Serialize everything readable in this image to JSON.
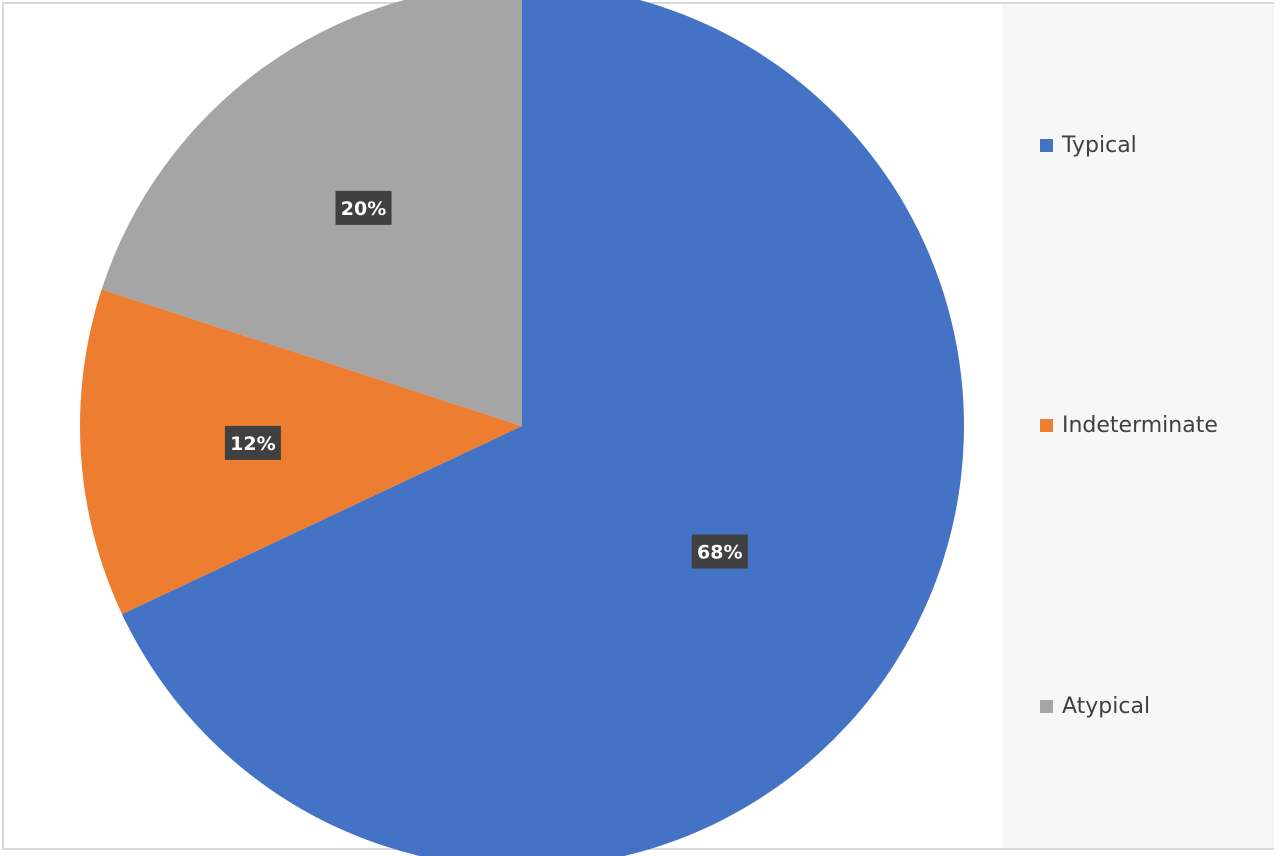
{
  "chart_data": {
    "type": "pie",
    "categories": [
      "Typical",
      "Indeterminate",
      "Atypical"
    ],
    "values": [
      68,
      12,
      20
    ],
    "value_labels": [
      "68%",
      "12%",
      "20%"
    ],
    "colors": [
      "#4472c4",
      "#ed7d31",
      "#a5a5a5"
    ],
    "start_angle_deg": 0,
    "direction": "clockwise",
    "legend_position": "right"
  }
}
